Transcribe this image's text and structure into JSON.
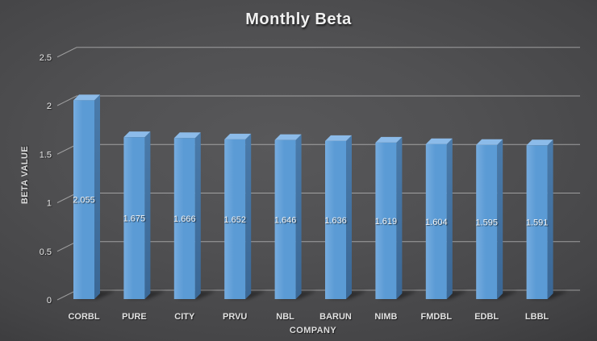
{
  "chart": {
    "title": "Monthly Beta",
    "x_axis_title": "COMPANY",
    "y_axis_title": "BETA VALUE"
  },
  "chart_data": {
    "type": "bar",
    "subtype": "3d-column",
    "theme": "dark",
    "title": "Monthly Beta",
    "xlabel": "COMPANY",
    "ylabel": "BETA VALUE",
    "categories": [
      "CORBL",
      "PURE",
      "CITY",
      "PRVU",
      "NBL",
      "BARUN",
      "NIMB",
      "FMDBL",
      "EDBL",
      "LBBL"
    ],
    "values": [
      2.055,
      1.675,
      1.666,
      1.652,
      1.646,
      1.636,
      1.619,
      1.604,
      1.595,
      1.591
    ],
    "data_labels": [
      "2.055",
      "1.675",
      "1.666",
      "1.652",
      "1.646",
      "1.636",
      "1.619",
      "1.604",
      "1.595",
      "1.591"
    ],
    "ylim": [
      0,
      2.5
    ],
    "y_ticks": [
      "0",
      "0.5",
      "1",
      "1.5",
      "2",
      "2.5"
    ],
    "grid": true,
    "legend": false,
    "colors": {
      "bar_front": "#5b9bd5",
      "bar_front_light": "#76acdf",
      "bar_top": "#8cbbe9",
      "bar_side_top": "#4a7bab",
      "bar_side_bottom": "#3a6795",
      "gridline": "#9b9b9d",
      "label_text": "#e8e8e8",
      "background_center": "#565658",
      "background_edge": "#28282a"
    }
  }
}
